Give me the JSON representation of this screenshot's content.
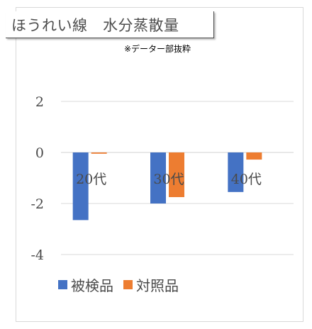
{
  "chart_data": {
    "type": "bar",
    "title": "ほうれい線　水分蒸散量",
    "subtitle": "※データー部抜粋",
    "categories": [
      "20代",
      "30代",
      "40代"
    ],
    "series": [
      {
        "name": "被検品",
        "values": [
          -2.65,
          -2.0,
          -1.55
        ],
        "color": "#4472C4"
      },
      {
        "name": "対照品",
        "values": [
          -0.05,
          -1.75,
          -0.28
        ],
        "color": "#ED7D31"
      }
    ],
    "ylim": [
      -4,
      2
    ],
    "yticks": [
      "2",
      "0",
      "-2",
      "-4"
    ],
    "grid": true,
    "legend_position": "bottom"
  }
}
